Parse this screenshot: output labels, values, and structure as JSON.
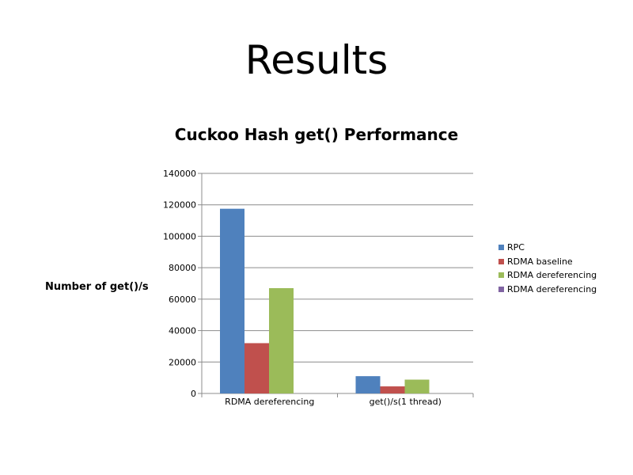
{
  "slide": {
    "title": "Results"
  },
  "chart_data": {
    "type": "bar",
    "title": "Cuckoo Hash get() Performance",
    "ylabel": "Number of get()/s",
    "xlabel": "",
    "ylim": [
      0,
      140000
    ],
    "yticks": [
      0,
      20000,
      40000,
      60000,
      80000,
      100000,
      120000,
      140000
    ],
    "categories": [
      "RDMA dereferencing",
      "get()/s(1 thread)"
    ],
    "series": [
      {
        "name": "RPC",
        "color": "#4f81bd",
        "values": [
          117500,
          11000
        ]
      },
      {
        "name": "RDMA baseline",
        "color": "#c0504d",
        "values": [
          32000,
          4500
        ]
      },
      {
        "name": "RDMA dereferencing",
        "color": "#9bbb59",
        "values": [
          67000,
          8800
        ]
      },
      {
        "name": "RDMA dereferencing",
        "color": "#8064a2",
        "values": [
          0,
          0
        ]
      }
    ],
    "grid": true,
    "legend_position": "right"
  }
}
